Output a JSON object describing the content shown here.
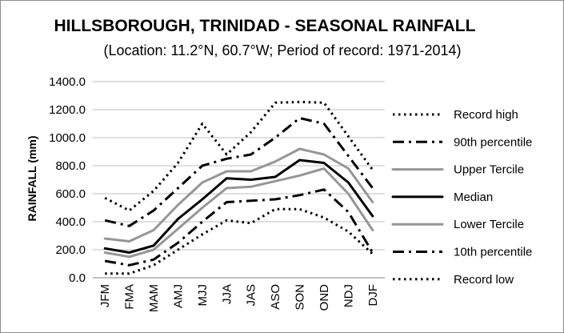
{
  "chart_data": {
    "type": "line",
    "title": "HILLSBOROUGH, TRINIDAD - SEASONAL RAINFALL",
    "subtitle": "(Location: 11.2°N, 60.7°W; Period of record: 1971-2014)",
    "ylabel": "RAINFALL (mm)",
    "xlabel": "",
    "ylim": [
      0,
      1400
    ],
    "yticks": [
      "0.0",
      "200.0",
      "400.0",
      "600.0",
      "800.0",
      "1000.0",
      "1200.0",
      "1400.0"
    ],
    "categories": [
      "JFM",
      "FMA",
      "MAM",
      "AMJ",
      "MJJ",
      "JJA",
      "JAS",
      "ASO",
      "SON",
      "OND",
      "NDJ",
      "DJF"
    ],
    "legend_position": "right",
    "grid": "horizontal",
    "series": [
      {
        "name": "Record high",
        "style": "dotted",
        "color": "#000000",
        "values": [
          570,
          480,
          620,
          820,
          1100,
          880,
          1040,
          1250,
          1255,
          1250,
          1010,
          770
        ]
      },
      {
        "name": "90th percentile",
        "style": "dashdot",
        "color": "#000000",
        "values": [
          410,
          370,
          480,
          640,
          800,
          850,
          880,
          1000,
          1140,
          1100,
          870,
          640
        ]
      },
      {
        "name": "Upper Tercile",
        "style": "solid",
        "color": "#969696",
        "values": [
          280,
          260,
          340,
          520,
          680,
          760,
          760,
          830,
          920,
          880,
          780,
          540
        ]
      },
      {
        "name": "Median",
        "style": "solid",
        "color": "#000000",
        "values": [
          210,
          180,
          230,
          420,
          560,
          710,
          700,
          720,
          840,
          820,
          680,
          440
        ]
      },
      {
        "name": "Lower Tercile",
        "style": "solid",
        "color": "#969696",
        "values": [
          180,
          150,
          200,
          350,
          500,
          640,
          650,
          690,
          730,
          780,
          600,
          340
        ]
      },
      {
        "name": "10th percentile",
        "style": "dashdot",
        "color": "#000000",
        "values": [
          120,
          90,
          130,
          250,
          400,
          540,
          550,
          560,
          590,
          630,
          470,
          180
        ]
      },
      {
        "name": "Record low",
        "style": "dotted",
        "color": "#000000",
        "values": [
          30,
          30,
          90,
          200,
          310,
          410,
          390,
          490,
          490,
          430,
          330,
          170
        ]
      }
    ]
  }
}
